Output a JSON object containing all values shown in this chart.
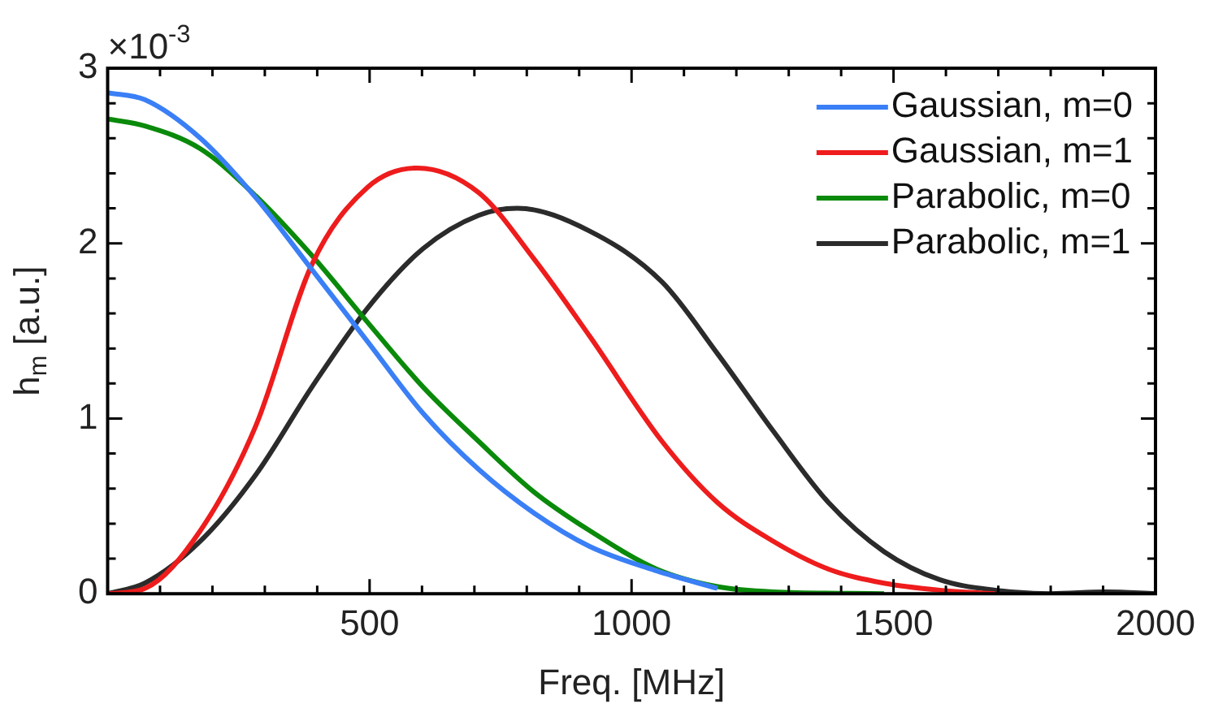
{
  "chart_data": {
    "type": "line",
    "xlabel": "Freq. [MHz]",
    "ylabel": "h$_{m}$ [a.u.]",
    "annotations": [
      "×10$^{-3}$"
    ],
    "xlim": [
      0,
      2000
    ],
    "ylim": [
      0,
      3
    ],
    "xticks": [
      {
        "value": 0,
        "label": null
      },
      {
        "value": 100,
        "label": null
      },
      {
        "value": 200,
        "label": null
      },
      {
        "value": 300,
        "label": null
      },
      {
        "value": 400,
        "label": null
      },
      500,
      {
        "value": 600,
        "label": null
      },
      {
        "value": 700,
        "label": null
      },
      {
        "value": 800,
        "label": null
      },
      {
        "value": 900,
        "label": null
      },
      1000,
      {
        "value": 1100,
        "label": null
      },
      {
        "value": 1200,
        "label": null
      },
      {
        "value": 1300,
        "label": null
      },
      {
        "value": 1400,
        "label": null
      },
      1500,
      {
        "value": 1600,
        "label": null
      },
      {
        "value": 1700,
        "label": null
      },
      {
        "value": 1800,
        "label": null
      },
      {
        "value": 1900,
        "label": null
      },
      2000
    ],
    "yticks": [
      0,
      {
        "value": 0.2,
        "label": null
      },
      {
        "value": 0.4,
        "label": null
      },
      {
        "value": 0.6,
        "label": null
      },
      {
        "value": 0.8,
        "label": null
      },
      1,
      {
        "value": 1.2,
        "label": null
      },
      {
        "value": 1.4,
        "label": null
      },
      {
        "value": 1.6,
        "label": null
      },
      {
        "value": 1.8,
        "label": null
      },
      2,
      {
        "value": 2.2,
        "label": null
      },
      {
        "value": 2.4,
        "label": null
      },
      {
        "value": 2.6,
        "label": null
      },
      {
        "value": 2.8,
        "label": null
      },
      3
    ],
    "grid": false,
    "legend": "top right",
    "marker": "none",
    "line_style": "solid",
    "series": [
      {
        "name": "Gaussian, m=0",
        "color": "#3a7ff6",
        "x": [
          0,
          71,
          177,
          283,
          390,
          496,
          602,
          708,
          814,
          920,
          1048,
          1164
        ],
        "values": [
          2.86,
          2.82,
          2.6,
          2.26,
          1.85,
          1.44,
          1.03,
          0.71,
          0.46,
          0.27,
          0.13,
          0.03
        ]
      },
      {
        "name": "Gaussian, m=1",
        "color": "#ee1c1c",
        "x": [
          0,
          71,
          177,
          283,
          390,
          496,
          591,
          708,
          814,
          920,
          1058,
          1164,
          1270,
          1376,
          1482,
          1588,
          1694
        ],
        "values": [
          0,
          0.03,
          0.36,
          0.96,
          1.88,
          2.32,
          2.43,
          2.29,
          1.91,
          1.47,
          0.87,
          0.52,
          0.3,
          0.14,
          0.06,
          0.02,
          0
        ]
      },
      {
        "name": "Parabolic, m=0",
        "color": "#0a8a0a",
        "x": [
          0,
          71,
          177,
          283,
          390,
          496,
          602,
          708,
          814,
          920,
          1048,
          1164,
          1270,
          1482
        ],
        "values": [
          2.71,
          2.67,
          2.54,
          2.27,
          1.93,
          1.55,
          1.18,
          0.87,
          0.58,
          0.36,
          0.14,
          0.04,
          0.01,
          0
        ]
      },
      {
        "name": "Parabolic, m=1",
        "color": "#2b2b2b",
        "x": [
          0,
          71,
          177,
          283,
          390,
          496,
          602,
          708,
          782,
          920,
          1058,
          1164,
          1270,
          1376,
          1482,
          1588,
          1694,
          1800,
          1906,
          2000
        ],
        "values": [
          0,
          0.06,
          0.3,
          0.68,
          1.18,
          1.63,
          1.97,
          2.16,
          2.2,
          2.07,
          1.78,
          1.37,
          0.93,
          0.52,
          0.24,
          0.08,
          0.02,
          0,
          0.01,
          0
        ]
      }
    ]
  }
}
